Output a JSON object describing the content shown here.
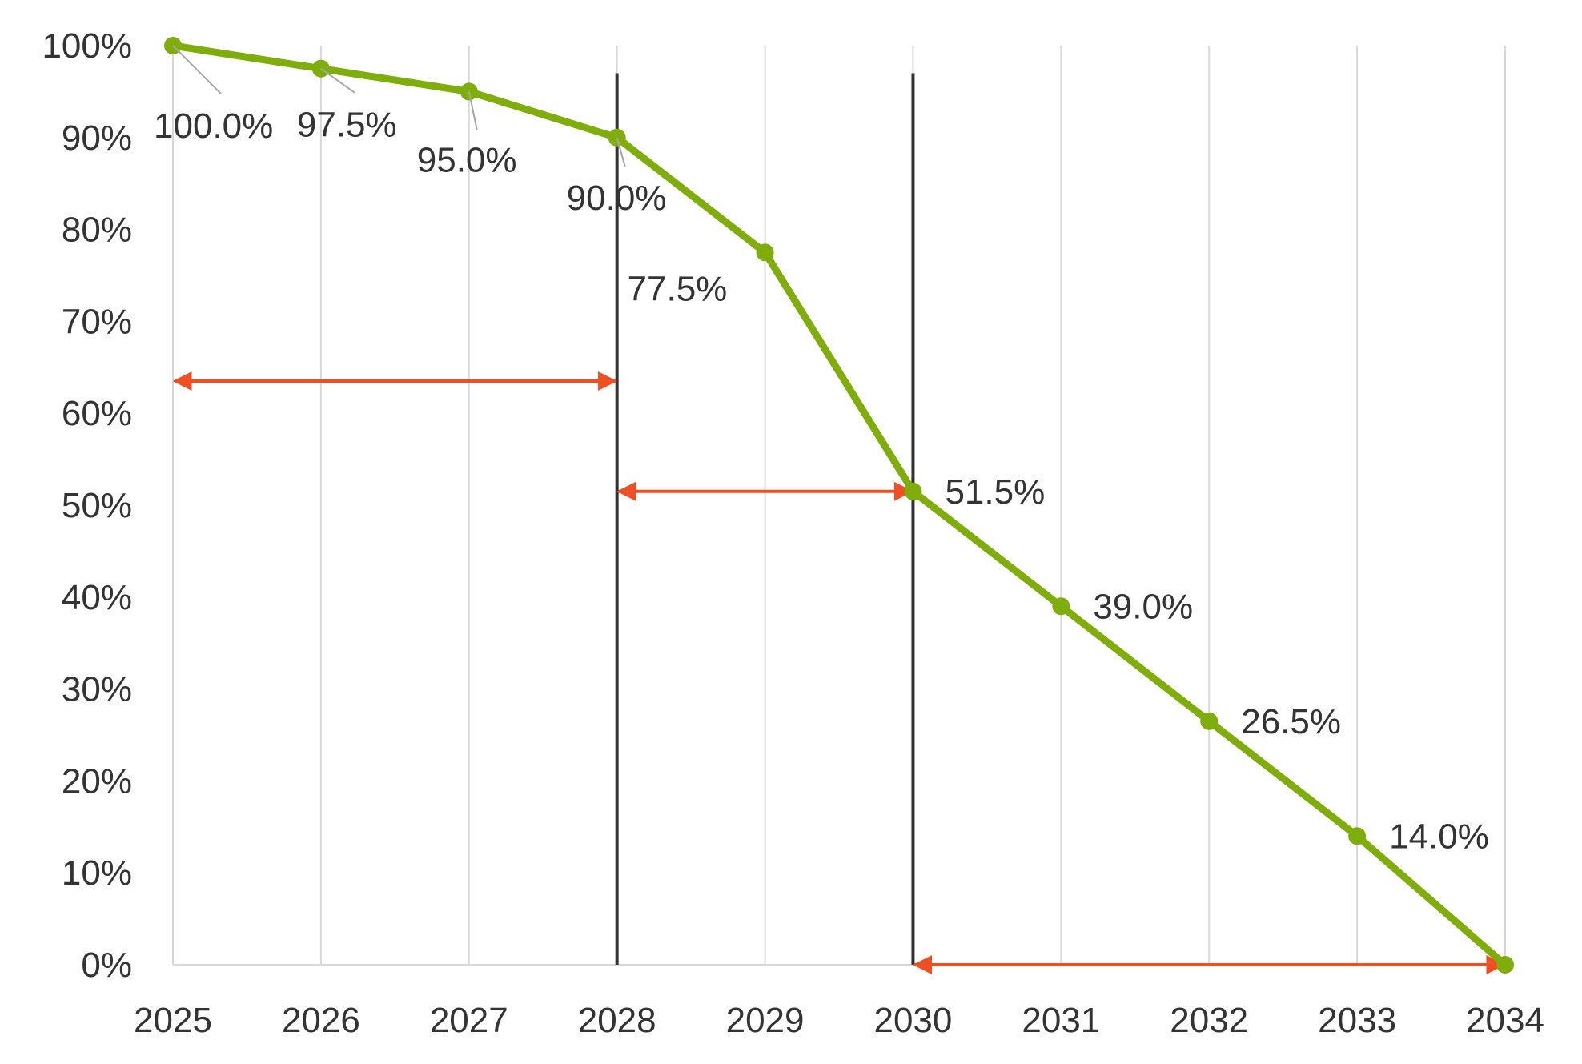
{
  "chart_data": {
    "type": "line",
    "title": "",
    "xlabel": "",
    "ylabel": "",
    "categories": [
      "2025",
      "2026",
      "2027",
      "2028",
      "2029",
      "2030",
      "2031",
      "2032",
      "2033",
      "2034"
    ],
    "series": [
      {
        "values": [
          100.0,
          97.5,
          95.0,
          90.0,
          77.5,
          51.5,
          39.0,
          26.5,
          14.0,
          0.0
        ],
        "data_labels": [
          "100.0%",
          "97.5%",
          "95.0%",
          "90.0%",
          "77.5%",
          "51.5%",
          "39.0%",
          "26.5%",
          "14.0%",
          ""
        ],
        "color": "#7fad0c"
      }
    ],
    "ylim": [
      0,
      100
    ],
    "y_ticks": [
      {
        "value": 0,
        "label": "0%"
      },
      {
        "value": 10,
        "label": "10%"
      },
      {
        "value": 20,
        "label": "20%"
      },
      {
        "value": 30,
        "label": "30%"
      },
      {
        "value": 40,
        "label": "40%"
      },
      {
        "value": 50,
        "label": "50%"
      },
      {
        "value": 60,
        "label": "60%"
      },
      {
        "value": 70,
        "label": "70%"
      },
      {
        "value": 80,
        "label": "80%"
      },
      {
        "value": 90,
        "label": "90%"
      },
      {
        "value": 100,
        "label": "100%"
      }
    ],
    "grid": {
      "vertical": true,
      "horizontal": false,
      "color": "#d9d9d9"
    },
    "legend": "none",
    "annotations": {
      "vertical_lines": [
        {
          "x": "2028",
          "y_top": 97,
          "color": "#333333"
        },
        {
          "x": "2030",
          "y_top": 97,
          "color": "#333333"
        }
      ],
      "arrows": [
        {
          "from_x": "2025",
          "to_x": "2028",
          "y": 63.5,
          "color": "#f04e23"
        },
        {
          "from_x": "2028",
          "to_x": "2030",
          "y": 51.5,
          "color": "#f04e23"
        },
        {
          "from_x": "2030",
          "to_x": "2034",
          "y": 0,
          "color": "#f04e23"
        }
      ]
    }
  }
}
